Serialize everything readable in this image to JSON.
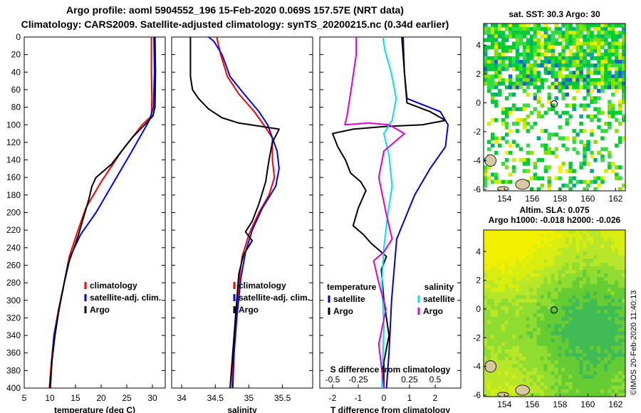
{
  "header": {
    "line1": "Argo profile: aoml 5904552_196 15-Feb-2020 0.069S 157.57E (NRT data)",
    "line2": "Climatology: CARS2009. Satellite-adjusted climatology: synTS_20200215.nc (0.34d earlier)"
  },
  "watermark": "©IMOS 20-Feb-2020 11:40:13",
  "chart_data": [
    {
      "type": "line",
      "id": "temperature",
      "xlabel": "temperature (deg C)",
      "ylabel": "",
      "xlim": [
        5,
        32.5
      ],
      "ylim": [
        400,
        0
      ],
      "xticks": [
        5,
        10,
        15,
        20,
        25,
        30
      ],
      "yticks": [
        0,
        20,
        40,
        60,
        80,
        100,
        120,
        140,
        160,
        180,
        200,
        220,
        240,
        260,
        280,
        300,
        320,
        340,
        360,
        380,
        400
      ],
      "legend": [
        "climatology",
        "satellite-adj. clim.",
        "Argo"
      ],
      "series": [
        {
          "name": "climatology",
          "color": "#ff0000",
          "points": [
            [
              29.8,
              0
            ],
            [
              29.8,
              40
            ],
            [
              29.9,
              70
            ],
            [
              29.8,
              90
            ],
            [
              28,
              100
            ],
            [
              24,
              130
            ],
            [
              20,
              165
            ],
            [
              17,
              195
            ],
            [
              15.2,
              225
            ],
            [
              13.8,
              250
            ],
            [
              12.8,
              280
            ],
            [
              11.7,
              310
            ],
            [
              10.8,
              340
            ],
            [
              10.3,
              370
            ],
            [
              9.9,
              400
            ]
          ]
        },
        {
          "name": "satellite-adj. clim.",
          "color": "#0000ff",
          "points": [
            [
              30.3,
              0
            ],
            [
              30.4,
              40
            ],
            [
              30.2,
              80
            ],
            [
              29.4,
              95
            ],
            [
              26,
              130
            ],
            [
              22,
              170
            ],
            [
              19,
              200
            ],
            [
              16,
              225
            ],
            [
              14,
              250
            ],
            [
              12.8,
              280
            ],
            [
              11.8,
              310
            ],
            [
              10.8,
              340
            ],
            [
              10.4,
              370
            ],
            [
              10.1,
              400
            ]
          ]
        },
        {
          "name": "Argo",
          "color": "#000000",
          "points": [
            [
              30.5,
              0
            ],
            [
              30.6,
              40
            ],
            [
              30.5,
              80
            ],
            [
              30.1,
              90
            ],
            [
              28.5,
              100
            ],
            [
              26,
              115
            ],
            [
              24,
              130
            ],
            [
              22,
              145
            ],
            [
              19,
              160
            ],
            [
              18.2,
              170
            ],
            [
              17.6,
              185
            ],
            [
              16.6,
              205
            ],
            [
              15.6,
              225
            ],
            [
              14.6,
              242
            ],
            [
              13.5,
              260
            ],
            [
              12.8,
              280
            ],
            [
              11.8,
              310
            ],
            [
              11,
              340
            ],
            [
              10.4,
              370
            ],
            [
              10,
              400
            ]
          ]
        }
      ]
    },
    {
      "type": "line",
      "id": "salinity",
      "xlabel": "salinity",
      "xlim": [
        33.85,
        35.95
      ],
      "ylim": [
        400,
        0
      ],
      "xticks": [
        34,
        34.5,
        35,
        35.5
      ],
      "legend": [
        "climatology",
        "satellite-adj. clim.",
        "Argo"
      ],
      "series": [
        {
          "name": "climatology",
          "color": "#ff0000",
          "points": [
            [
              34.52,
              0
            ],
            [
              34.58,
              20
            ],
            [
              34.68,
              45
            ],
            [
              34.85,
              65
            ],
            [
              35.08,
              85
            ],
            [
              35.22,
              100
            ],
            [
              35.35,
              115
            ],
            [
              35.35,
              140
            ],
            [
              35.38,
              160
            ],
            [
              35.3,
              180
            ],
            [
              35.15,
              200
            ],
            [
              35,
              225
            ],
            [
              34.9,
              250
            ],
            [
              34.85,
              280
            ],
            [
              34.8,
              320
            ],
            [
              34.77,
              360
            ],
            [
              34.75,
              400
            ]
          ]
        },
        {
          "name": "satellite-adj. clim.",
          "color": "#0000ff",
          "points": [
            [
              34.4,
              0
            ],
            [
              34.48,
              5
            ],
            [
              34.6,
              20
            ],
            [
              34.72,
              45
            ],
            [
              34.93,
              65
            ],
            [
              35.15,
              85
            ],
            [
              35.28,
              100
            ],
            [
              35.35,
              115
            ],
            [
              35.42,
              130
            ],
            [
              35.45,
              150
            ],
            [
              35.4,
              170
            ],
            [
              35.2,
              195
            ],
            [
              35.05,
              220
            ],
            [
              34.95,
              245
            ],
            [
              34.88,
              275
            ],
            [
              34.82,
              320
            ],
            [
              34.78,
              360
            ],
            [
              34.76,
              400
            ]
          ]
        },
        {
          "name": "Argo",
          "color": "#000000",
          "points": [
            [
              34.13,
              0
            ],
            [
              34.13,
              45
            ],
            [
              34.16,
              60
            ],
            [
              34.25,
              70
            ],
            [
              34.4,
              82
            ],
            [
              34.6,
              92
            ],
            [
              34.85,
              98
            ],
            [
              35.2,
              102
            ],
            [
              35.45,
              105
            ],
            [
              35.35,
              120
            ],
            [
              35.3,
              140
            ],
            [
              35.25,
              165
            ],
            [
              35.15,
              190
            ],
            [
              35.05,
              210
            ],
            [
              34.95,
              222
            ],
            [
              35.05,
              232
            ],
            [
              34.92,
              248
            ],
            [
              34.85,
              270
            ],
            [
              34.82,
              300
            ],
            [
              34.78,
              340
            ],
            [
              34.75,
              370
            ],
            [
              34.72,
              400
            ]
          ]
        }
      ]
    },
    {
      "type": "line",
      "id": "difference",
      "xlabel": "T difference from climatology",
      "xlabel_top": "S difference from climatology",
      "xlim": [
        -2.5,
        3.0
      ],
      "s_scale": 4,
      "ylim": [
        400,
        0
      ],
      "xticks_T": [
        -2,
        -1,
        0,
        1,
        2
      ],
      "xticks_S": [
        -0.5,
        -0.25,
        0.25,
        0.5
      ],
      "legend_left_title": "temperature",
      "legend_right_title": "salinity",
      "legend_left": [
        "satellite",
        "Argo"
      ],
      "legend_right": [
        "satellite",
        "Argo"
      ],
      "series": [
        {
          "name": "temperature satellite",
          "unit": "T",
          "color": "#0000cc",
          "points": [
            [
              0.75,
              0
            ],
            [
              0.8,
              40
            ],
            [
              0.9,
              70
            ],
            [
              2.2,
              85
            ],
            [
              2.5,
              100
            ],
            [
              2.4,
              125
            ],
            [
              1.8,
              150
            ],
            [
              1.2,
              180
            ],
            [
              0.5,
              230
            ],
            [
              0.3,
              300
            ],
            [
              0.2,
              360
            ],
            [
              0.1,
              400
            ]
          ]
        },
        {
          "name": "temperature Argo",
          "unit": "T",
          "color": "#000000",
          "points": [
            [
              0.7,
              0
            ],
            [
              0.8,
              40
            ],
            [
              0.9,
              75
            ],
            [
              1.8,
              85
            ],
            [
              2.4,
              95
            ],
            [
              1.5,
              100
            ],
            [
              0,
              102
            ],
            [
              -1.2,
              105
            ],
            [
              -2,
              110
            ],
            [
              -1.8,
              125
            ],
            [
              -1.5,
              140
            ],
            [
              -1.3,
              155
            ],
            [
              -0.9,
              165
            ],
            [
              -0.7,
              175
            ],
            [
              -1,
              195
            ],
            [
              -1.2,
              215
            ],
            [
              -0.8,
              225
            ],
            [
              -0.5,
              235
            ],
            [
              0.1,
              250
            ],
            [
              -0.1,
              265
            ],
            [
              0,
              300
            ],
            [
              0.2,
              340
            ],
            [
              0,
              370
            ],
            [
              0,
              400
            ]
          ]
        },
        {
          "name": "salinity satellite",
          "unit": "S",
          "color": "#00e0ff",
          "points": [
            [
              -0.01,
              0
            ],
            [
              0.01,
              15
            ],
            [
              0.07,
              40
            ],
            [
              0.12,
              70
            ],
            [
              0.08,
              95
            ],
            [
              0.0,
              110
            ],
            [
              0.05,
              135
            ],
            [
              0.08,
              170
            ],
            [
              0.04,
              200
            ],
            [
              0.0,
              240
            ],
            [
              -0.02,
              280
            ],
            [
              0.0,
              330
            ],
            [
              -0.02,
              400
            ]
          ]
        },
        {
          "name": "salinity Argo",
          "unit": "S",
          "color": "#dd00dd",
          "points": [
            [
              -0.27,
              0
            ],
            [
              -0.27,
              20
            ],
            [
              -0.32,
              60
            ],
            [
              -0.36,
              90
            ],
            [
              -0.38,
              100
            ],
            [
              -0.15,
              98
            ],
            [
              0.05,
              100
            ],
            [
              0.2,
              110
            ],
            [
              0.1,
              120
            ],
            [
              0.0,
              130
            ],
            [
              -0.05,
              160
            ],
            [
              0.02,
              200
            ],
            [
              0.08,
              230
            ],
            [
              0.0,
              245
            ],
            [
              -0.1,
              255
            ],
            [
              -0.05,
              280
            ],
            [
              0.02,
              310
            ],
            [
              -0.05,
              350
            ],
            [
              0.0,
              400
            ]
          ]
        }
      ]
    }
  ],
  "maps": [
    {
      "title": "sat. SST: 30.3 Argo: 30",
      "xticks": [
        154,
        156,
        158,
        160,
        162
      ],
      "yticks": [
        4,
        2,
        0,
        -2,
        -4,
        -6
      ],
      "xlim": [
        152.5,
        162.7
      ],
      "ylim": [
        -6.1,
        5.5
      ],
      "float_lon": 157.57,
      "float_lat": -0.069
    },
    {
      "title_line1": "Altim. SLA: 0.075",
      "title_line2": "Argo h1000: -0.018 h2000: -0.026",
      "xticks": [
        154,
        156,
        158,
        160,
        162
      ],
      "yticks": [
        4,
        2,
        0,
        -2,
        -4,
        -6
      ],
      "xlim": [
        152.5,
        162.7
      ],
      "ylim": [
        -6.1,
        5.5
      ],
      "float_lon": 157.57,
      "float_lat": -0.069
    }
  ]
}
